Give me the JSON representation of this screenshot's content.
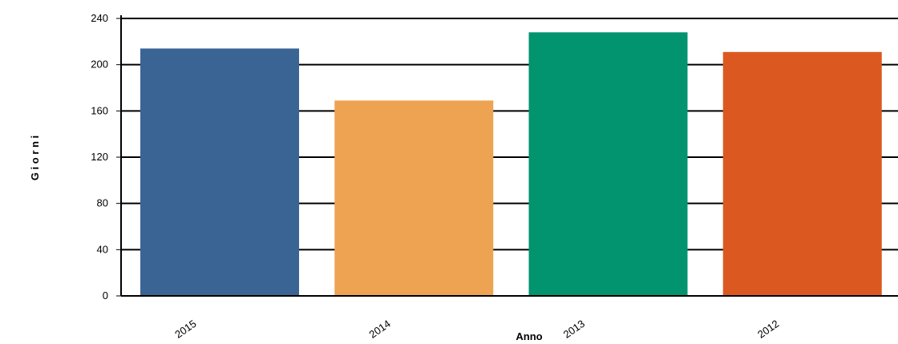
{
  "chart_data": {
    "type": "bar",
    "title": "",
    "xlabel": "Anno",
    "ylabel": "G i o r n i",
    "categories": [
      "2015",
      "2014",
      "2013",
      "2012"
    ],
    "values": [
      214,
      169,
      228,
      211
    ],
    "bar_colors": [
      "#3A6494",
      "#EEA353",
      "#02936F",
      "#DB5921"
    ],
    "ylim": [
      0,
      240
    ],
    "yticks": [
      "0",
      "40",
      "80",
      "120",
      "160",
      "200",
      "240"
    ],
    "grid": true,
    "legend": "none"
  }
}
